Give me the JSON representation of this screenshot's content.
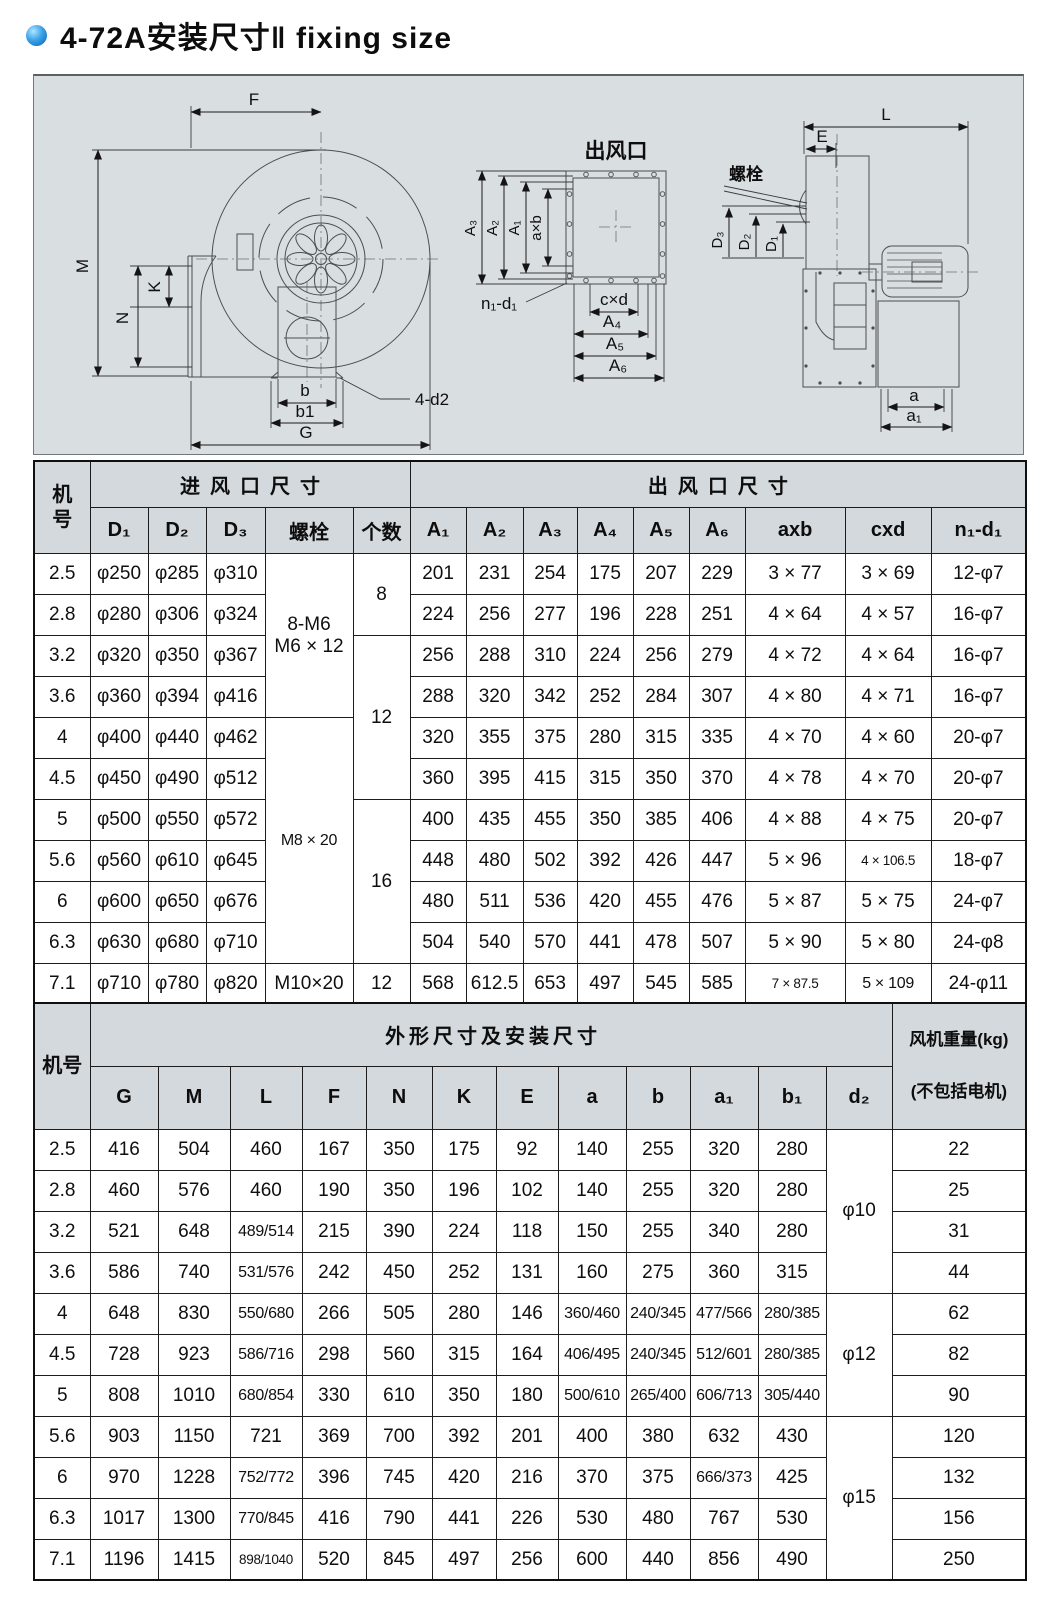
{
  "title": "4-72A安装尺寸‖ fixing size",
  "diagram": {
    "fan_front": {
      "f": "F",
      "m": "M",
      "k": "K",
      "n": "N",
      "b": "b",
      "b1": "b1",
      "g": "G",
      "four_d2": "4-d2"
    },
    "outlet": {
      "title": "出风口",
      "a3": "A₃",
      "a2": "A₂",
      "a1": "A₁",
      "axb": "a×b",
      "n1d1": "n₁-d₁",
      "cxd": "c×d",
      "a4": "A₄",
      "a5": "A₅",
      "a6": "A₆"
    },
    "side": {
      "l": "L",
      "e": "E",
      "bolt": "螺栓",
      "d3": "D₃",
      "d2": "D₂",
      "d1": "D₁",
      "a": "a",
      "a1": "a₁"
    }
  },
  "table1": {
    "corner": "机\n号",
    "group_inlet": "进风口尺寸",
    "group_outlet": "出风口尺寸",
    "columns": [
      "D₁",
      "D₂",
      "D₃",
      "螺栓",
      "个数",
      "A₁",
      "A₂",
      "A₃",
      "A₄",
      "A₅",
      "A₆",
      "axb",
      "cxd",
      "n₁-d₁"
    ],
    "rows": [
      [
        "2.5",
        "φ250",
        "φ285",
        "φ310",
        {
          "t": "8-M6\nM6 × 12",
          "rs": 4
        },
        {
          "t": "8",
          "rs": 2
        },
        "201",
        "231",
        "254",
        "175",
        "207",
        "229",
        "3 × 77",
        "3 × 69",
        "12-φ7"
      ],
      [
        "2.8",
        "φ280",
        "φ306",
        "φ324",
        null,
        null,
        "224",
        "256",
        "277",
        "196",
        "228",
        "251",
        "4 × 64",
        "4 × 57",
        "16-φ7"
      ],
      [
        "3.2",
        "φ320",
        "φ350",
        "φ367",
        null,
        {
          "t": "12",
          "rs": 4
        },
        "256",
        "288",
        "310",
        "224",
        "256",
        "279",
        "4 × 72",
        "4 × 64",
        "16-φ7"
      ],
      [
        "3.6",
        "φ360",
        "φ394",
        "φ416",
        null,
        null,
        "288",
        "320",
        "342",
        "252",
        "284",
        "307",
        "4 × 80",
        "4 × 71",
        "16-φ7"
      ],
      [
        "4",
        "φ400",
        "φ440",
        "φ462",
        {
          "t": "M8 × 20",
          "rs": 6
        },
        null,
        "320",
        "355",
        "375",
        "280",
        "315",
        "335",
        "4 × 70",
        "4 × 60",
        "20-φ7"
      ],
      [
        "4.5",
        "φ450",
        "φ490",
        "φ512",
        null,
        null,
        "360",
        "395",
        "415",
        "315",
        "350",
        "370",
        "4 × 78",
        "4 × 70",
        "20-φ7"
      ],
      [
        "5",
        "φ500",
        "φ550",
        "φ572",
        null,
        {
          "t": "16",
          "rs": 4
        },
        "400",
        "435",
        "455",
        "350",
        "385",
        "406",
        "4 × 88",
        "4 × 75",
        "20-φ7"
      ],
      [
        "5.6",
        "φ560",
        "φ610",
        "φ645",
        null,
        null,
        "448",
        "480",
        "502",
        "392",
        "426",
        "447",
        "5 × 96",
        "4 × 106.5",
        "18-φ7"
      ],
      [
        "6",
        "φ600",
        "φ650",
        "φ676",
        null,
        null,
        "480",
        "511",
        "536",
        "420",
        "455",
        "476",
        "5 × 87",
        "5 × 75",
        "24-φ7"
      ],
      [
        "6.3",
        "φ630",
        "φ680",
        "φ710",
        null,
        null,
        "504",
        "540",
        "570",
        "441",
        "478",
        "507",
        "5 × 90",
        "5 × 80",
        "24-φ8"
      ],
      [
        "7.1",
        "φ710",
        "φ780",
        "φ820",
        "M10×20",
        "12",
        "568",
        "612.5",
        "653",
        "497",
        "545",
        "585",
        "7 × 87.5",
        "5 × 109",
        "24-φ11"
      ]
    ]
  },
  "table2": {
    "corner": "机号",
    "group": "外形尺寸及安装尺寸",
    "weight_line1": "风机重量(kg)",
    "weight_line2": "(不包括电机)",
    "columns": [
      "G",
      "M",
      "L",
      "F",
      "N",
      "K",
      "E",
      "a",
      "b",
      "a₁",
      "b₁",
      "d₂"
    ],
    "rows": [
      [
        "2.5",
        "416",
        "504",
        "460",
        "167",
        "350",
        "175",
        "92",
        "140",
        "255",
        "320",
        "280",
        {
          "t": "φ10",
          "rs": 4
        },
        "22"
      ],
      [
        "2.8",
        "460",
        "576",
        "460",
        "190",
        "350",
        "196",
        "102",
        "140",
        "255",
        "320",
        "280",
        null,
        "25"
      ],
      [
        "3.2",
        "521",
        "648",
        "489/514",
        "215",
        "390",
        "224",
        "118",
        "150",
        "255",
        "340",
        "280",
        null,
        "31"
      ],
      [
        "3.6",
        "586",
        "740",
        "531/576",
        "242",
        "450",
        "252",
        "131",
        "160",
        "275",
        "360",
        "315",
        null,
        "44"
      ],
      [
        "4",
        "648",
        "830",
        "550/680",
        "266",
        "505",
        "280",
        "146",
        "360/460",
        "240/345",
        "477/566",
        "280/385",
        {
          "t": "φ12",
          "rs": 3
        },
        "62"
      ],
      [
        "4.5",
        "728",
        "923",
        "586/716",
        "298",
        "560",
        "315",
        "164",
        "406/495",
        "240/345",
        "512/601",
        "280/385",
        null,
        "82"
      ],
      [
        "5",
        "808",
        "1010",
        "680/854",
        "330",
        "610",
        "350",
        "180",
        "500/610",
        "265/400",
        "606/713",
        "305/440",
        null,
        "90"
      ],
      [
        "5.6",
        "903",
        "1150",
        "721",
        "369",
        "700",
        "392",
        "201",
        "400",
        "380",
        "632",
        "430",
        {
          "t": "φ15",
          "rs": 4
        },
        "120"
      ],
      [
        "6",
        "970",
        "1228",
        "752/772",
        "396",
        "745",
        "420",
        "216",
        "370",
        "375",
        "666/373",
        "425",
        null,
        "132"
      ],
      [
        "6.3",
        "1017",
        "1300",
        "770/845",
        "416",
        "790",
        "441",
        "226",
        "530",
        "480",
        "767",
        "530",
        null,
        "156"
      ],
      [
        "7.1",
        "1196",
        "1415",
        "898/1040",
        "520",
        "845",
        "497",
        "256",
        "600",
        "440",
        "856",
        "490",
        null,
        "250"
      ]
    ]
  }
}
